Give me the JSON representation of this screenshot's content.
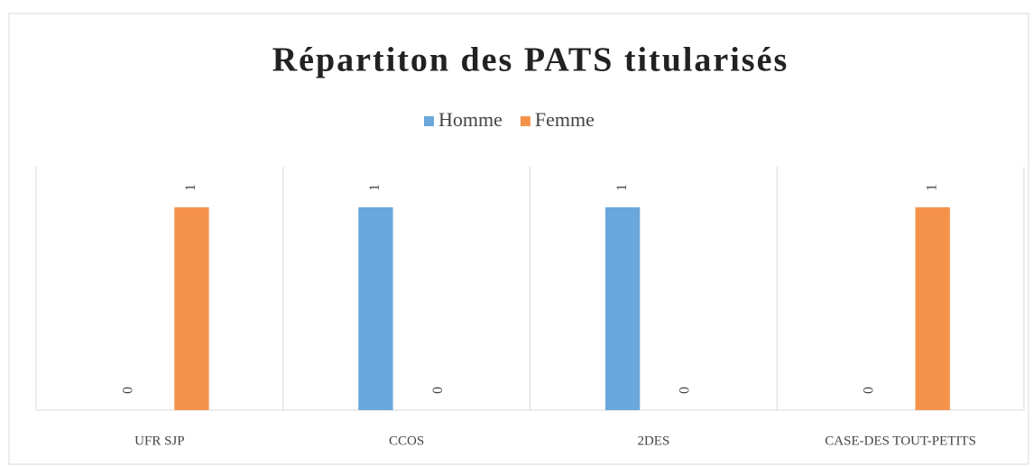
{
  "chart_data": {
    "type": "bar",
    "title": "Répartiton des PATS titularisés",
    "categories": [
      "UFR SJP",
      "CCOS",
      "2DES",
      "CASE-DES TOUT-PETITS"
    ],
    "series": [
      {
        "name": "Homme",
        "color": "#69a7dc",
        "values": [
          0,
          1,
          1,
          0
        ]
      },
      {
        "name": "Femme",
        "color": "#f5924a",
        "values": [
          1,
          0,
          0,
          1
        ]
      }
    ],
    "ylim": [
      0,
      1.2
    ],
    "legend": "top",
    "data_labels": true
  }
}
